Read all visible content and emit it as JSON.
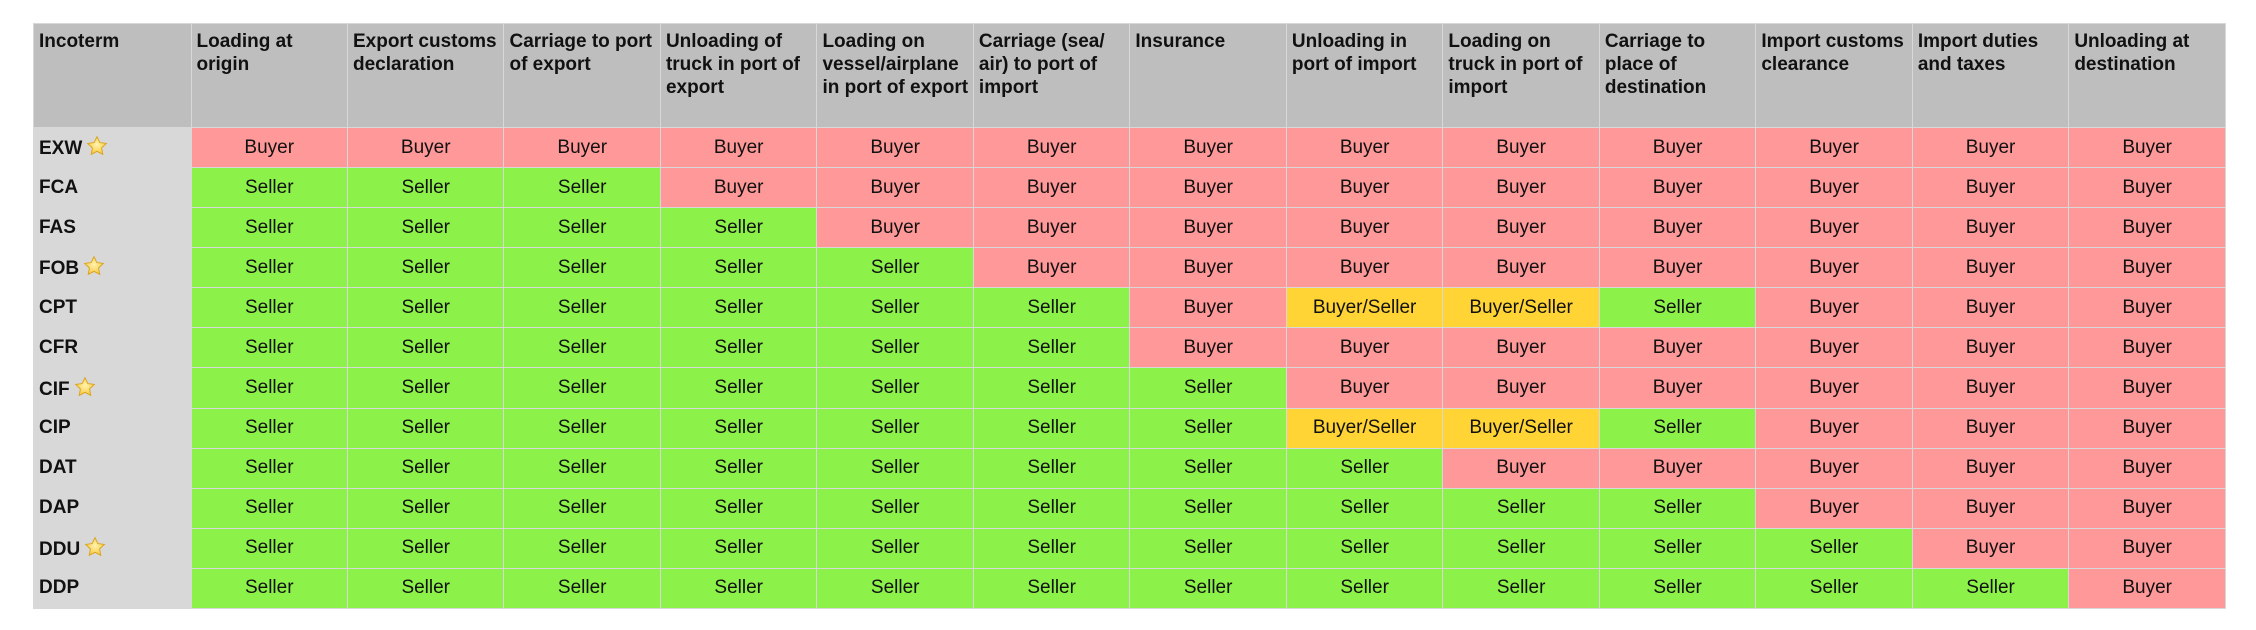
{
  "table": {
    "corner": "Incoterm",
    "columns": [
      "Loading at origin",
      "Export customs declaration",
      "Carriage to port of export",
      "Unloading of truck in port of export",
      "Loading on vessel/airplane in port of export",
      "Carriage (sea/ air) to port of import",
      "Insurance",
      "Unloading in port of import",
      "Loading on truck in port of import",
      "Carriage to place of destination",
      "Import customs clearance",
      "Import duties and taxes",
      "Unloading at destination"
    ],
    "rows": [
      {
        "term": "EXW",
        "starred": true,
        "cells": [
          "Buyer",
          "Buyer",
          "Buyer",
          "Buyer",
          "Buyer",
          "Buyer",
          "Buyer",
          "Buyer",
          "Buyer",
          "Buyer",
          "Buyer",
          "Buyer",
          "Buyer"
        ]
      },
      {
        "term": "FCA",
        "starred": false,
        "cells": [
          "Seller",
          "Seller",
          "Seller",
          "Buyer",
          "Buyer",
          "Buyer",
          "Buyer",
          "Buyer",
          "Buyer",
          "Buyer",
          "Buyer",
          "Buyer",
          "Buyer"
        ]
      },
      {
        "term": "FAS",
        "starred": false,
        "cells": [
          "Seller",
          "Seller",
          "Seller",
          "Seller",
          "Buyer",
          "Buyer",
          "Buyer",
          "Buyer",
          "Buyer",
          "Buyer",
          "Buyer",
          "Buyer",
          "Buyer"
        ]
      },
      {
        "term": "FOB",
        "starred": true,
        "cells": [
          "Seller",
          "Seller",
          "Seller",
          "Seller",
          "Seller",
          "Buyer",
          "Buyer",
          "Buyer",
          "Buyer",
          "Buyer",
          "Buyer",
          "Buyer",
          "Buyer"
        ]
      },
      {
        "term": "CPT",
        "starred": false,
        "cells": [
          "Seller",
          "Seller",
          "Seller",
          "Seller",
          "Seller",
          "Seller",
          "Buyer",
          "Buyer/Seller",
          "Buyer/Seller",
          "Seller",
          "Buyer",
          "Buyer",
          "Buyer"
        ]
      },
      {
        "term": "CFR",
        "starred": false,
        "cells": [
          "Seller",
          "Seller",
          "Seller",
          "Seller",
          "Seller",
          "Seller",
          "Buyer",
          "Buyer",
          "Buyer",
          "Buyer",
          "Buyer",
          "Buyer",
          "Buyer"
        ]
      },
      {
        "term": "CIF",
        "starred": true,
        "cells": [
          "Seller",
          "Seller",
          "Seller",
          "Seller",
          "Seller",
          "Seller",
          "Seller",
          "Buyer",
          "Buyer",
          "Buyer",
          "Buyer",
          "Buyer",
          "Buyer"
        ]
      },
      {
        "term": "CIP",
        "starred": false,
        "cells": [
          "Seller",
          "Seller",
          "Seller",
          "Seller",
          "Seller",
          "Seller",
          "Seller",
          "Buyer/Seller",
          "Buyer/Seller",
          "Seller",
          "Buyer",
          "Buyer",
          "Buyer"
        ]
      },
      {
        "term": "DAT",
        "starred": false,
        "cells": [
          "Seller",
          "Seller",
          "Seller",
          "Seller",
          "Seller",
          "Seller",
          "Seller",
          "Seller",
          "Buyer",
          "Buyer",
          "Buyer",
          "Buyer",
          "Buyer"
        ]
      },
      {
        "term": "DAP",
        "starred": false,
        "cells": [
          "Seller",
          "Seller",
          "Seller",
          "Seller",
          "Seller",
          "Seller",
          "Seller",
          "Seller",
          "Seller",
          "Seller",
          "Buyer",
          "Buyer",
          "Buyer"
        ]
      },
      {
        "term": "DDU",
        "starred": true,
        "cells": [
          "Seller",
          "Seller",
          "Seller",
          "Seller",
          "Seller",
          "Seller",
          "Seller",
          "Seller",
          "Seller",
          "Seller",
          "Seller",
          "Buyer",
          "Buyer"
        ]
      },
      {
        "term": "DDP",
        "starred": false,
        "cells": [
          "Seller",
          "Seller",
          "Seller",
          "Seller",
          "Seller",
          "Seller",
          "Seller",
          "Seller",
          "Seller",
          "Seller",
          "Seller",
          "Seller",
          "Buyer"
        ]
      }
    ]
  },
  "colors": {
    "seller": "#8cf24a",
    "buyer": "#ff9898",
    "shared": "#ffd434",
    "header_bg": "#bebebe",
    "row_header_bg": "#d8d8d8",
    "star": "#f7c531"
  },
  "icons": {
    "starred_marker": "star-icon"
  }
}
